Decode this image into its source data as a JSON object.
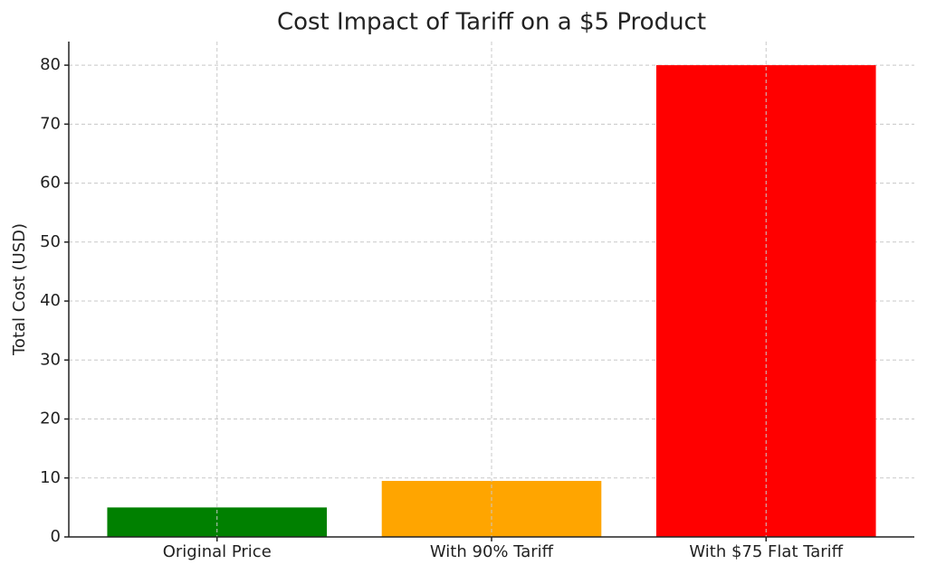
{
  "chart_data": {
    "type": "bar",
    "title": "Cost Impact of Tariff on a $5 Product",
    "y_label": "Total Cost (USD)",
    "categories": [
      "Original Price",
      "With 90% Tariff",
      "With $75 Flat Tariff"
    ],
    "values": [
      5,
      9.5,
      80
    ],
    "colors": [
      "#008000",
      "#ffa500",
      "#ff0000"
    ],
    "ylim": [
      0,
      84
    ],
    "yticks": [
      0,
      10,
      20,
      30,
      40,
      50,
      60,
      70,
      80
    ],
    "grid": true
  }
}
